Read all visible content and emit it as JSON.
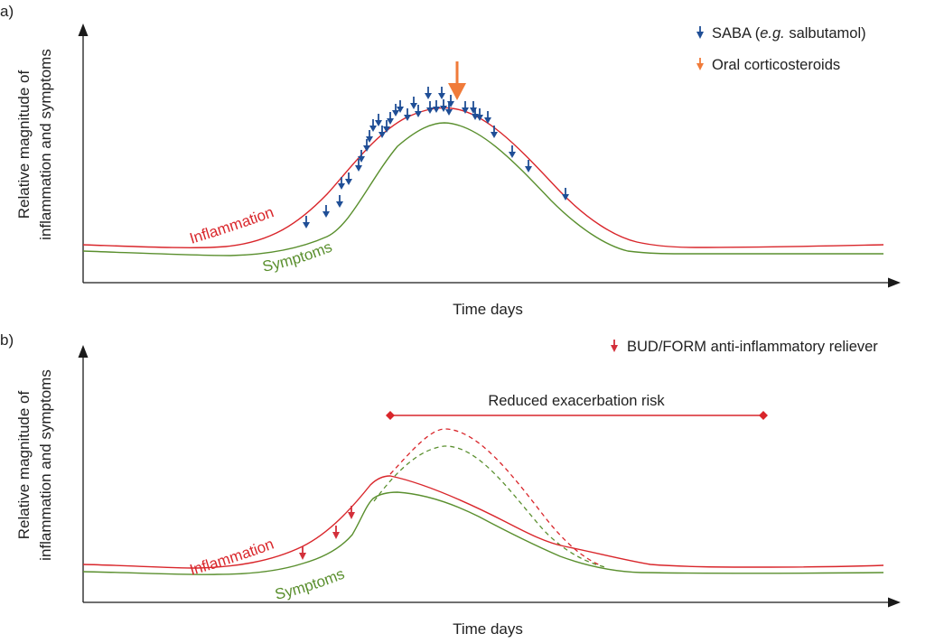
{
  "colors": {
    "saba": "#1f4e96",
    "ocs": "#f07b3a",
    "inflammation": "#d9262b",
    "symptoms": "#5a8f2e",
    "budform": "#d32f3a",
    "axis": "#1a1a1a"
  },
  "panel_a": {
    "label": "a)",
    "y_axis_label_line1": "Relative magnitude of",
    "y_axis_label_line2": "inflammation and symptoms",
    "x_axis_label": "Time days",
    "legend": {
      "saba_prefix": "SABA (",
      "saba_italic": "e.g.",
      "saba_suffix": " salbutamol)",
      "ocs": "Oral corticosteroids"
    },
    "curve_labels": {
      "inflammation": "Inflammation",
      "symptoms": "Symptoms"
    }
  },
  "panel_b": {
    "label": "b)",
    "y_axis_label_line1": "Relative magnitude of",
    "y_axis_label_line2": "inflammation and symptoms",
    "x_axis_label": "Time days",
    "legend": {
      "budform": "BUD/FORM anti-inflammatory reliever"
    },
    "range_label": "Reduced exacerbation risk",
    "curve_labels": {
      "inflammation": "Inflammation",
      "symptoms": "Symptoms"
    }
  }
}
